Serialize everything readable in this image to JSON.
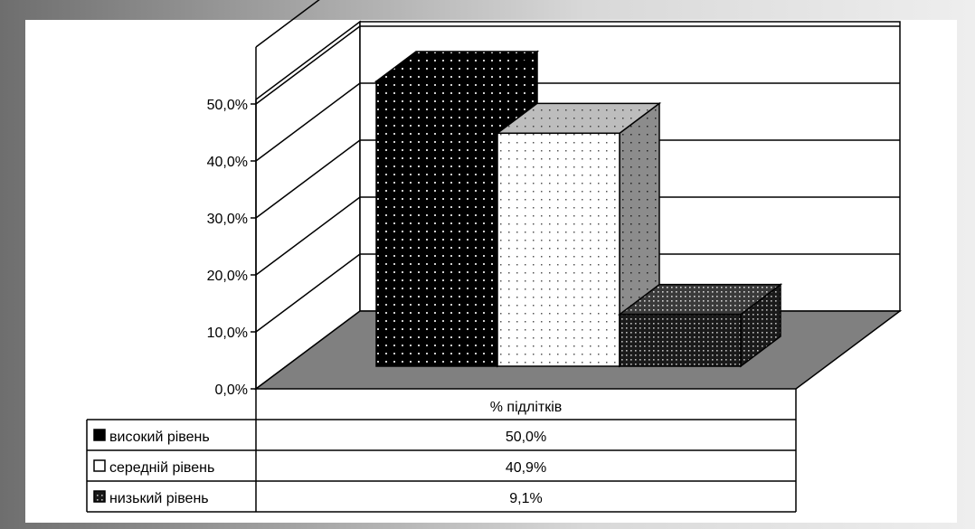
{
  "chart_data": {
    "type": "bar",
    "categories": [
      "% підлітків"
    ],
    "series": [
      {
        "name": "високий рівень",
        "values": [
          50.0
        ],
        "label": "50,0%",
        "pattern": "dots-on-black"
      },
      {
        "name": "середній рівень",
        "values": [
          40.9
        ],
        "label": "40,9%",
        "pattern": "dots-on-white"
      },
      {
        "name": "низький рівень",
        "values": [
          9.1
        ],
        "label": "9,1%",
        "pattern": "dense-dots"
      }
    ],
    "yticks": [
      "0,0%",
      "10,0%",
      "20,0%",
      "30,0%",
      "40,0%",
      "50,0%"
    ],
    "ylim": [
      0,
      50
    ],
    "grid": true,
    "three_d": true,
    "legend": "data-table-below",
    "colors": {
      "floor": "#808080",
      "frame_dark": "#6e6e6e",
      "frame_light": "#eeeeee"
    }
  }
}
